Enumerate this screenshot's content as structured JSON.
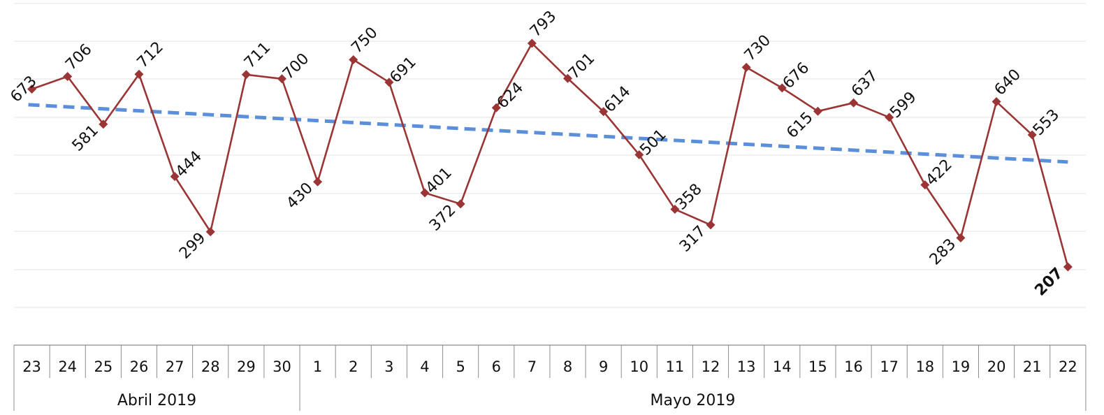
{
  "chart_data": {
    "type": "line",
    "title": "",
    "xlabel": "",
    "ylabel": "",
    "ylim": [
      100,
      900
    ],
    "grid": true,
    "legend": "none",
    "categories": [
      "23",
      "24",
      "25",
      "26",
      "27",
      "28",
      "29",
      "30",
      "1",
      "2",
      "3",
      "4",
      "5",
      "6",
      "7",
      "8",
      "9",
      "10",
      "11",
      "12",
      "13",
      "14",
      "15",
      "16",
      "17",
      "18",
      "19",
      "20",
      "21",
      "22"
    ],
    "groups": [
      {
        "label": "Abril 2019",
        "start": 0,
        "end": 7
      },
      {
        "label": "Mayo 2019",
        "start": 8,
        "end": 29
      }
    ],
    "series": [
      {
        "values": [
          673,
          706,
          581,
          712,
          444,
          299,
          711,
          700,
          430,
          750,
          691,
          401,
          372,
          624,
          793,
          701,
          614,
          501,
          358,
          317,
          730,
          676,
          615,
          637,
          599,
          422,
          283,
          640,
          553,
          207
        ],
        "color": "#9b3535",
        "marker": "diamond"
      }
    ],
    "trendline": {
      "type": "linear",
      "style": "dashed",
      "color": "#5b8fd9",
      "start_value": 632,
      "end_value": 482
    },
    "bold_labels": [
      29
    ]
  }
}
